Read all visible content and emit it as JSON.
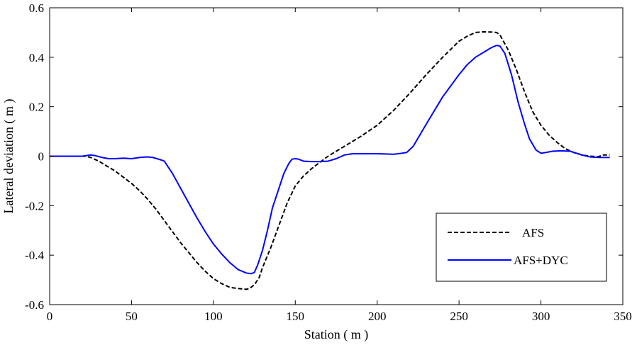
{
  "chart_data": {
    "type": "line",
    "title": "",
    "xlabel": "Station ( m )",
    "ylabel": "Lateral deviation ( m )",
    "xlim": [
      0,
      350
    ],
    "ylim": [
      -0.6,
      0.6
    ],
    "xticks": [
      0,
      50,
      100,
      150,
      200,
      250,
      300,
      350
    ],
    "yticks": [
      -0.6,
      -0.4,
      -0.2,
      0,
      0.2,
      0.4,
      0.6
    ],
    "xtick_labels": [
      "0",
      "50",
      "100",
      "150",
      "200",
      "250",
      "300",
      "350"
    ],
    "ytick_labels": [
      "-0.6",
      "-0.4",
      "-0.2",
      "0",
      "0.2",
      "0.4",
      "0.6"
    ],
    "grid": false,
    "box": true,
    "legend_position": "bottom-right",
    "series": [
      {
        "name": "AFS",
        "color": "#000000",
        "style": "dashed",
        "x": [
          0,
          22,
          25,
          30,
          35,
          40,
          45,
          50,
          55,
          60,
          65,
          70,
          75,
          80,
          85,
          90,
          95,
          100,
          105,
          110,
          115,
          120,
          122,
          125,
          128,
          130,
          135,
          140,
          145,
          150,
          155,
          160,
          165,
          170,
          175,
          180,
          190,
          200,
          210,
          220,
          230,
          240,
          250,
          255,
          260,
          265,
          270,
          273,
          275,
          280,
          285,
          290,
          295,
          300,
          305,
          310,
          315,
          320,
          325,
          330,
          335,
          338,
          342
        ],
        "y": [
          0,
          0,
          -0.005,
          -0.02,
          -0.04,
          -0.06,
          -0.085,
          -0.11,
          -0.14,
          -0.175,
          -0.215,
          -0.26,
          -0.305,
          -0.35,
          -0.39,
          -0.43,
          -0.465,
          -0.495,
          -0.515,
          -0.53,
          -0.535,
          -0.538,
          -0.535,
          -0.52,
          -0.49,
          -0.45,
          -0.37,
          -0.28,
          -0.19,
          -0.12,
          -0.08,
          -0.05,
          -0.025,
          0,
          0.02,
          0.04,
          0.08,
          0.125,
          0.185,
          0.255,
          0.33,
          0.4,
          0.465,
          0.485,
          0.5,
          0.503,
          0.502,
          0.5,
          0.49,
          0.43,
          0.35,
          0.26,
          0.18,
          0.125,
          0.085,
          0.055,
          0.03,
          0.015,
          0.005,
          0,
          -0.002,
          0.005,
          0.005
        ]
      },
      {
        "name": "AFS+DYC",
        "color": "#0000ff",
        "style": "solid",
        "x": [
          0,
          20,
          25,
          28,
          32,
          36,
          40,
          45,
          50,
          55,
          60,
          63,
          68,
          70,
          75,
          80,
          85,
          90,
          95,
          100,
          105,
          110,
          115,
          120,
          123,
          125,
          127,
          130,
          133,
          136,
          140,
          143,
          146,
          148,
          150,
          152,
          155,
          160,
          165,
          170,
          175,
          180,
          185,
          190,
          200,
          210,
          215,
          218,
          222,
          230,
          240,
          250,
          255,
          260,
          265,
          270,
          273,
          275,
          278,
          282,
          286,
          290,
          293,
          297,
          300,
          303,
          307,
          312,
          318,
          325,
          330,
          335,
          342
        ],
        "y": [
          0,
          0,
          0.005,
          0.002,
          -0.005,
          -0.01,
          -0.01,
          -0.008,
          -0.01,
          -0.005,
          -0.003,
          -0.005,
          -0.015,
          -0.02,
          -0.07,
          -0.13,
          -0.19,
          -0.25,
          -0.305,
          -0.355,
          -0.395,
          -0.43,
          -0.458,
          -0.472,
          -0.475,
          -0.47,
          -0.44,
          -0.38,
          -0.3,
          -0.21,
          -0.13,
          -0.07,
          -0.03,
          -0.012,
          -0.01,
          -0.012,
          -0.02,
          -0.022,
          -0.022,
          -0.02,
          -0.01,
          0.005,
          0.01,
          0.01,
          0.01,
          0.008,
          0.012,
          0.015,
          0.04,
          0.13,
          0.24,
          0.33,
          0.37,
          0.4,
          0.42,
          0.44,
          0.448,
          0.445,
          0.415,
          0.33,
          0.22,
          0.13,
          0.07,
          0.025,
          0.012,
          0.015,
          0.02,
          0.022,
          0.02,
          0.005,
          -0.003,
          -0.005,
          -0.005
        ]
      }
    ]
  }
}
